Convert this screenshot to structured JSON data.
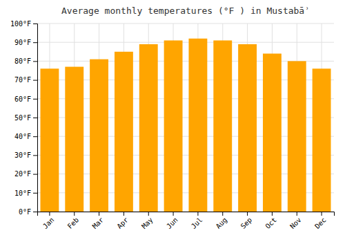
{
  "chart_data": {
    "type": "bar",
    "title": "Average monthly temperatures (°F ) in Mustabāʾ",
    "categories": [
      "Jan",
      "Feb",
      "Mar",
      "Apr",
      "May",
      "Jun",
      "Jul",
      "Aug",
      "Sep",
      "Oct",
      "Nov",
      "Dec"
    ],
    "values": [
      76,
      77,
      81,
      85,
      89,
      91,
      92,
      91,
      89,
      84,
      80,
      76
    ],
    "color": "#FFA500",
    "ylim": [
      0,
      100
    ],
    "yticks": [
      {
        "value": 0,
        "label": "0°F"
      },
      {
        "value": 10,
        "label": "10°F"
      },
      {
        "value": 20,
        "label": "20°F"
      },
      {
        "value": 30,
        "label": "30°F"
      },
      {
        "value": 40,
        "label": "40°F"
      },
      {
        "value": 50,
        "label": "50°F"
      },
      {
        "value": 60,
        "label": "60°F"
      },
      {
        "value": 70,
        "label": "70°F"
      },
      {
        "value": 80,
        "label": "80°F"
      },
      {
        "value": 90,
        "label": "90°F"
      },
      {
        "value": 100,
        "label": "100°F"
      }
    ],
    "grid": true
  }
}
